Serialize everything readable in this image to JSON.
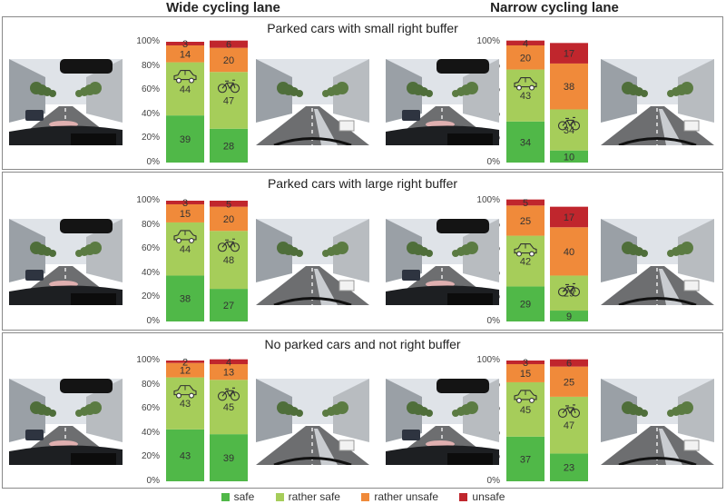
{
  "headers": {
    "wide": "Wide cycling lane",
    "narrow": "Narrow cycling lane"
  },
  "y_ticks": [
    "100%",
    "80%",
    "60%",
    "40%",
    "20%",
    "0%"
  ],
  "legend": [
    {
      "label": "safe",
      "color": "#50b848"
    },
    {
      "label": "rather safe",
      "color": "#a6cd5a"
    },
    {
      "label": "rather unsafe",
      "color": "#f08a3a"
    },
    {
      "label": "unsafe",
      "color": "#c0262d"
    }
  ],
  "icons": {
    "car": "car-icon",
    "bike": "bicycle-icon"
  },
  "chart_data": {
    "type": "bar",
    "stacked": true,
    "percent": true,
    "ylim": [
      0,
      100
    ],
    "series_names": [
      "safe",
      "rather safe",
      "rather unsafe",
      "unsafe"
    ],
    "colors": [
      "#50b848",
      "#a6cd5a",
      "#f08a3a",
      "#c0262d"
    ],
    "panels": [
      {
        "title": "Parked cars with small right buffer",
        "groups": [
          {
            "lane": "Wide cycling lane",
            "bars": [
              {
                "perspective": "car",
                "values": [
                  39,
                  44,
                  14,
                  3
                ]
              },
              {
                "perspective": "bike",
                "values": [
                  28,
                  47,
                  20,
                  6
                ]
              }
            ]
          },
          {
            "lane": "Narrow cycling lane",
            "bars": [
              {
                "perspective": "car",
                "values": [
                  34,
                  43,
                  20,
                  4
                ]
              },
              {
                "perspective": "bike",
                "values": [
                  10,
                  34,
                  38,
                  17
                ]
              }
            ]
          }
        ]
      },
      {
        "title": "Parked cars with large right buffer",
        "groups": [
          {
            "lane": "Wide cycling lane",
            "bars": [
              {
                "perspective": "car",
                "values": [
                  38,
                  44,
                  15,
                  3
                ]
              },
              {
                "perspective": "bike",
                "values": [
                  27,
                  48,
                  20,
                  5
                ]
              }
            ]
          },
          {
            "lane": "Narrow cycling lane",
            "bars": [
              {
                "perspective": "car",
                "values": [
                  29,
                  42,
                  25,
                  5
                ]
              },
              {
                "perspective": "bike",
                "values": [
                  9,
                  29,
                  40,
                  17
                ]
              }
            ]
          }
        ]
      },
      {
        "title": "No parked cars and not right buffer",
        "groups": [
          {
            "lane": "Wide cycling lane",
            "bars": [
              {
                "perspective": "car",
                "values": [
                  43,
                  43,
                  12,
                  2
                ]
              },
              {
                "perspective": "bike",
                "values": [
                  39,
                  45,
                  13,
                  4
                ]
              }
            ]
          },
          {
            "lane": "Narrow cycling lane",
            "bars": [
              {
                "perspective": "car",
                "values": [
                  37,
                  45,
                  15,
                  3
                ]
              },
              {
                "perspective": "bike",
                "values": [
                  23,
                  47,
                  25,
                  6
                ]
              }
            ]
          }
        ]
      }
    ]
  }
}
